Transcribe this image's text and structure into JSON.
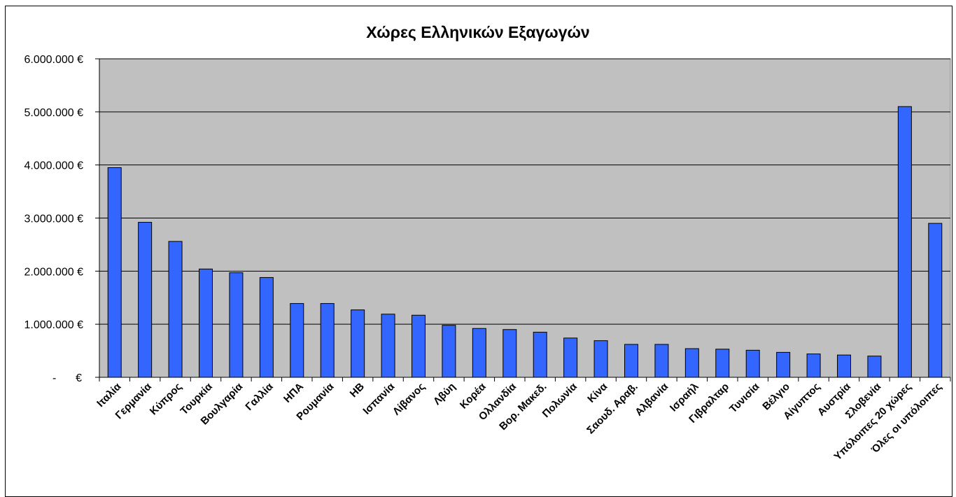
{
  "chart_data": {
    "type": "bar",
    "title": "Χώρες Ελληνικών Εξαγωγών",
    "xlabel": "",
    "ylabel": "",
    "ylim": [
      0,
      6000000
    ],
    "yticks": [
      0,
      1000000,
      2000000,
      3000000,
      4000000,
      5000000,
      6000000
    ],
    "ytick_labels": [
      "-",
      "1.000.000 €",
      "2.000.000 €",
      "3.000.000 €",
      "4.000.000 €",
      "5.000.000 €",
      "6.000.000 €"
    ],
    "zero_currency": "€",
    "grid": true,
    "plot_background": "#c0c0c0",
    "bar_color": "#3366ff",
    "categories": [
      "Ιταλία",
      "Γερμανία",
      "Κύπρος",
      "Τουρκία",
      "Βουλγαρία",
      "Γαλλία",
      "ΗΠΑ",
      "Ρουμανία",
      "ΗΒ",
      "Ισπανία",
      "Λίβανος",
      "Λβύη",
      "Κορέα",
      "Ολλανδία",
      "Βορ. Μακεδ.",
      "Πολωνία",
      "Κίνα",
      "Σαουδ. Αραβ.",
      "Αλβανία",
      "Ισραήλ",
      "Γιβραλταρ",
      "Τυνισία",
      "Βέλγιο",
      "Αίγυπτος",
      "Αυστρία",
      "Σλοβενία",
      "Υπόλοιπες 20 χώρες",
      "Όλες οι υπόλοιπες"
    ],
    "values": [
      3950000,
      2920000,
      2560000,
      2040000,
      1970000,
      1880000,
      1390000,
      1390000,
      1270000,
      1190000,
      1170000,
      980000,
      920000,
      900000,
      850000,
      740000,
      690000,
      620000,
      620000,
      540000,
      530000,
      510000,
      470000,
      440000,
      420000,
      400000,
      5100000,
      2900000
    ]
  }
}
